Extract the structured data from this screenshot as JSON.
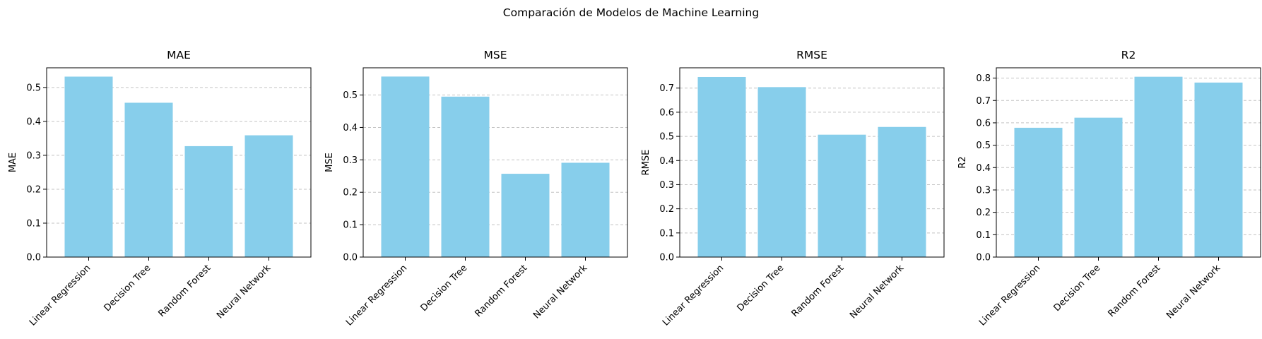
{
  "suptitle": "Comparación de Modelos de Machine Learning",
  "colors": {
    "bar": "#87ceeb",
    "grid": "#b0b0b0",
    "axis": "#000000"
  },
  "chart_data": [
    {
      "type": "bar",
      "title": "MAE",
      "xlabel": "",
      "ylabel": "MAE",
      "categories": [
        "Linear Regression",
        "Decision Tree",
        "Random Forest",
        "Neural Network"
      ],
      "values": [
        0.532,
        0.455,
        0.327,
        0.359
      ],
      "ylim": [
        0,
        0.558
      ],
      "yticks": [
        "0.0",
        "0.1",
        "0.2",
        "0.3",
        "0.4",
        "0.5"
      ],
      "grid": "y-dashed"
    },
    {
      "type": "bar",
      "title": "MSE",
      "xlabel": "",
      "ylabel": "MSE",
      "categories": [
        "Linear Regression",
        "Decision Tree",
        "Random Forest",
        "Neural Network"
      ],
      "values": [
        0.557,
        0.495,
        0.257,
        0.291
      ],
      "ylim": [
        0,
        0.584
      ],
      "yticks": [
        "0.0",
        "0.1",
        "0.2",
        "0.3",
        "0.4",
        "0.5"
      ],
      "grid": "y-dashed"
    },
    {
      "type": "bar",
      "title": "RMSE",
      "xlabel": "",
      "ylabel": "RMSE",
      "categories": [
        "Linear Regression",
        "Decision Tree",
        "Random Forest",
        "Neural Network"
      ],
      "values": [
        0.746,
        0.704,
        0.507,
        0.539
      ],
      "ylim": [
        0,
        0.784
      ],
      "yticks": [
        "0.0",
        "0.1",
        "0.2",
        "0.3",
        "0.4",
        "0.5",
        "0.6",
        "0.7"
      ],
      "grid": "y-dashed"
    },
    {
      "type": "bar",
      "title": "R2",
      "xlabel": "",
      "ylabel": "R2",
      "categories": [
        "Linear Regression",
        "Decision Tree",
        "Random Forest",
        "Neural Network"
      ],
      "values": [
        0.578,
        0.623,
        0.806,
        0.78
      ],
      "ylim": [
        0,
        0.846
      ],
      "yticks": [
        "0.0",
        "0.1",
        "0.2",
        "0.3",
        "0.4",
        "0.5",
        "0.6",
        "0.7",
        "0.8"
      ],
      "grid": "y-dashed"
    }
  ]
}
